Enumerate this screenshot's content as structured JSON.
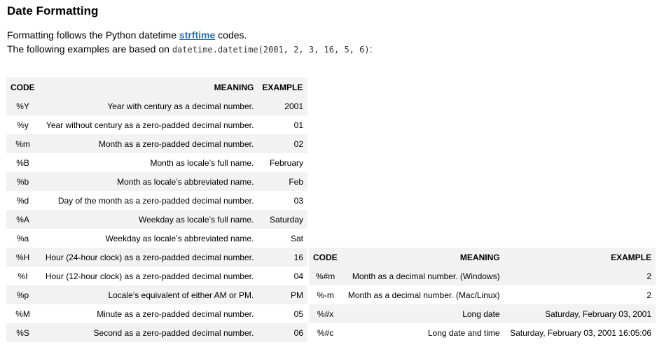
{
  "title": "Date Formatting",
  "intro": {
    "line1_prefix": "Formatting follows the Python datetime ",
    "link_text": "strftime",
    "line1_suffix": " codes.",
    "line2_prefix": "The following examples are based on ",
    "code_text": "datetime.datetime(2001, 2, 3, 16, 5, 6)",
    "line2_suffix": ":"
  },
  "table1": {
    "headers": [
      "CODE",
      "MEANING",
      "EXAMPLE"
    ],
    "rows": [
      [
        "%Y",
        "Year with century as a decimal number.",
        "2001"
      ],
      [
        "%y",
        "Year without century as a zero-padded decimal number.",
        "01"
      ],
      [
        "%m",
        "Month as a zero-padded decimal number.",
        "02"
      ],
      [
        "%B",
        "Month as locale’s full name.",
        "February"
      ],
      [
        "%b",
        "Month as locale’s abbreviated name.",
        "Feb"
      ],
      [
        "%d",
        "Day of the month as a zero-padded decimal number.",
        "03"
      ],
      [
        "%A",
        "Weekday as locale’s full name.",
        "Saturday"
      ],
      [
        "%a",
        "Weekday as locale’s abbreviated name.",
        "Sat"
      ],
      [
        "%H",
        "Hour (24-hour clock) as a zero-padded decimal number.",
        "16"
      ],
      [
        "%I",
        "Hour (12-hour clock) as a zero-padded decimal number.",
        "04"
      ],
      [
        "%p",
        "Locale’s equivalent of either AM or PM.",
        "PM"
      ],
      [
        "%M",
        "Minute as a zero-padded decimal number.",
        "05"
      ],
      [
        "%S",
        "Second as a zero-padded decimal number.",
        "06"
      ]
    ]
  },
  "table2": {
    "headers": [
      "CODE",
      "MEANING",
      "EXAMPLE"
    ],
    "rows": [
      [
        "%#m",
        "Month as a decimal number. (Windows)",
        "2"
      ],
      [
        "%-m",
        "Month as a decimal number. (Mac/Linux)",
        "2"
      ],
      [
        "%#x",
        "Long date",
        "Saturday, February 03, 2001"
      ],
      [
        "%#c",
        "Long date and time",
        "Saturday, February 03, 2001 16:05:06"
      ]
    ]
  }
}
